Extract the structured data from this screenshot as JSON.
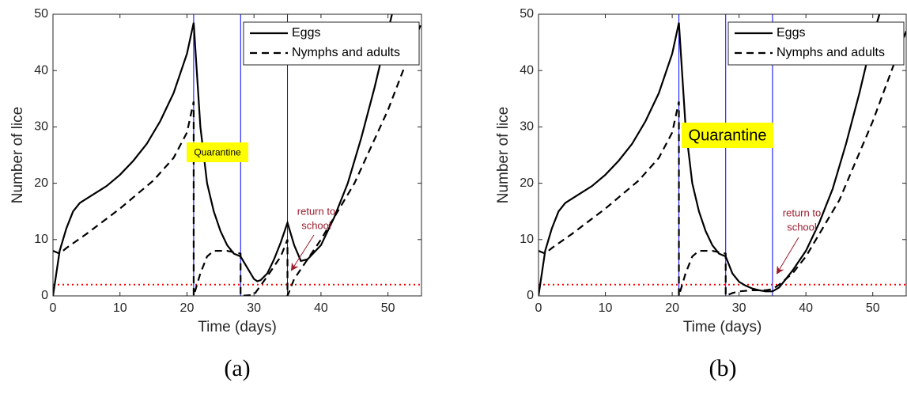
{
  "chart_data": [
    {
      "type": "line",
      "caption": "(a)",
      "xlabel": "Time (days)",
      "ylabel": "Number of lice",
      "xlim": [
        0,
        55
      ],
      "ylim": [
        0,
        50
      ],
      "xticks": [
        0,
        10,
        20,
        30,
        40,
        50
      ],
      "yticks": [
        0,
        10,
        20,
        30,
        40,
        50
      ],
      "legend": "northeast",
      "series": [
        {
          "name": "Eggs",
          "color": "#000000",
          "style": "solid",
          "x": [
            0,
            1,
            2,
            3,
            4,
            6,
            8,
            10,
            12,
            14,
            16,
            18,
            20,
            21,
            22,
            23,
            24,
            25,
            26,
            27,
            28,
            29,
            30,
            30.5,
            31,
            32,
            33,
            34,
            35,
            36,
            37,
            38,
            40,
            42,
            44,
            46,
            48,
            50,
            50.6
          ],
          "values": [
            0,
            8,
            12,
            15,
            16.5,
            18,
            19.5,
            21.5,
            24,
            27,
            31,
            36,
            43,
            48.5,
            30,
            20,
            15,
            11.5,
            9,
            7.5,
            7,
            5,
            3,
            2.6,
            2.8,
            4,
            6.5,
            9.5,
            13,
            9,
            6.2,
            6.5,
            9,
            14,
            20,
            28,
            37,
            47,
            50
          ]
        },
        {
          "name": "Nymphs and adults",
          "color": "#000000",
          "style": "dashed",
          "x": [
            0,
            1,
            2,
            5,
            10,
            15,
            18,
            20,
            21,
            21,
            22,
            23,
            24,
            26,
            28,
            28,
            30,
            32,
            34,
            35,
            35,
            36,
            38,
            40,
            45,
            50,
            55
          ],
          "values": [
            8,
            7.5,
            8.5,
            11,
            15.5,
            20.5,
            24.5,
            29,
            34.5,
            0,
            4,
            7,
            8,
            8,
            7.5,
            0,
            0.2,
            3.5,
            7,
            10,
            0,
            3,
            6.5,
            10,
            20,
            33,
            48.5
          ]
        }
      ],
      "vlines": {
        "color": "#0000ff",
        "x": [
          21,
          28,
          35
        ]
      },
      "hline": {
        "color": "#ff0000",
        "y": 2
      },
      "annotations": {
        "quarantine": "Quarantine",
        "return": [
          "return to",
          "school"
        ]
      }
    },
    {
      "type": "line",
      "caption": "(b)",
      "xlabel": "Time (days)",
      "ylabel": "Number of lice",
      "xlim": [
        0,
        55
      ],
      "ylim": [
        0,
        50
      ],
      "xticks": [
        0,
        10,
        20,
        30,
        40,
        50
      ],
      "yticks": [
        0,
        10,
        20,
        30,
        40,
        50
      ],
      "legend": "northeast",
      "series": [
        {
          "name": "Eggs",
          "color": "#000000",
          "style": "solid",
          "x": [
            0,
            1,
            2,
            3,
            4,
            6,
            8,
            10,
            12,
            14,
            16,
            18,
            20,
            21,
            22,
            23,
            24,
            25,
            26,
            27,
            28,
            29,
            30,
            31,
            32,
            33,
            34,
            35,
            36,
            37,
            38,
            40,
            42,
            44,
            46,
            48,
            50,
            51
          ],
          "values": [
            0,
            8,
            12,
            15,
            16.5,
            18,
            19.5,
            21.5,
            24,
            27,
            31,
            36,
            43,
            48.5,
            30,
            20,
            15,
            11.5,
            9,
            7.5,
            7,
            4,
            2.5,
            1.8,
            1.3,
            1,
            0.8,
            0.8,
            1.5,
            3,
            4.5,
            8,
            13,
            19,
            27,
            36,
            46,
            50
          ]
        },
        {
          "name": "Nymphs and adults",
          "color": "#000000",
          "style": "dashed",
          "x": [
            0,
            1,
            2,
            5,
            10,
            15,
            18,
            20,
            21,
            21,
            22,
            23,
            24,
            26,
            28,
            28,
            29,
            30,
            32,
            34,
            35,
            36,
            38,
            40,
            45,
            50,
            55
          ],
          "values": [
            8,
            7.5,
            8.5,
            11,
            15.5,
            20.5,
            24.5,
            29,
            34.5,
            0,
            4,
            7,
            8,
            8,
            7.5,
            0,
            0.5,
            0.8,
            1,
            1,
            1.2,
            2,
            4,
            7,
            17,
            31,
            47
          ]
        }
      ],
      "vlines": {
        "color": "#0000ff",
        "x": [
          21,
          28,
          35
        ]
      },
      "hline": {
        "color": "#ff0000",
        "y": 2
      },
      "annotations": {
        "quarantine": "Quarantine",
        "return": [
          "return to",
          "school"
        ]
      }
    }
  ]
}
